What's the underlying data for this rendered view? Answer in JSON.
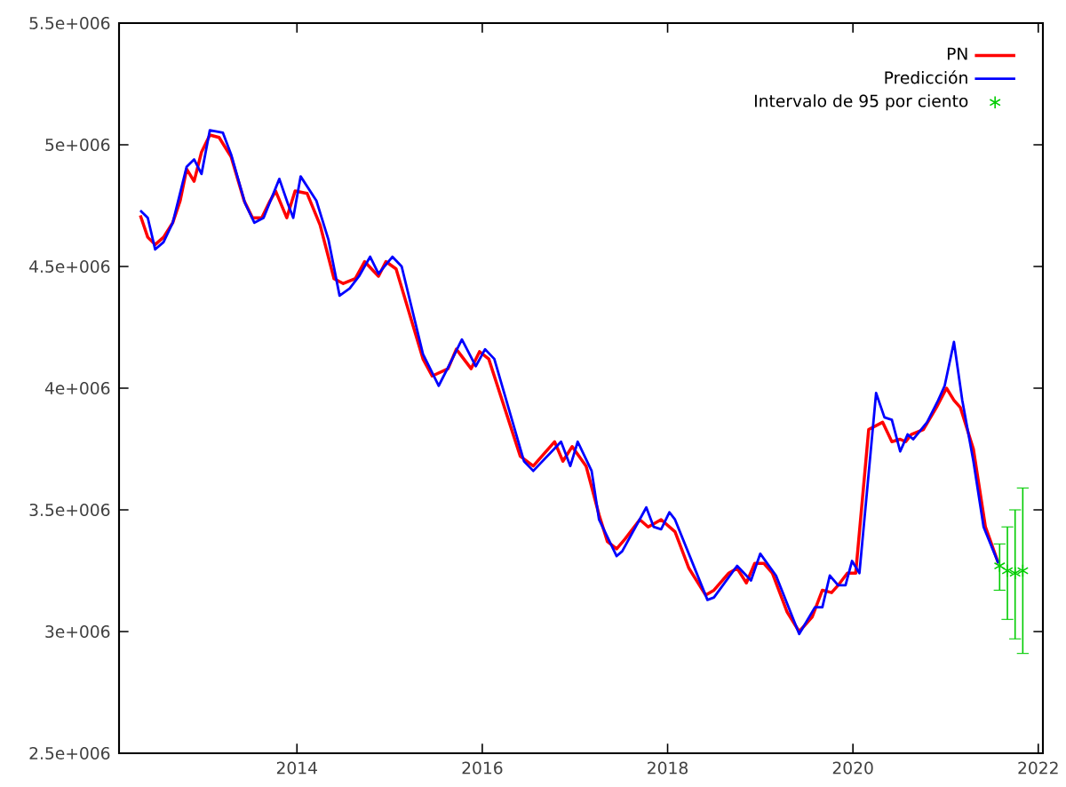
{
  "chart_data": {
    "type": "line",
    "xlim": [
      2012.08,
      2022.05
    ],
    "ylim": [
      2500000,
      5500000
    ],
    "xticks": [
      2014,
      2016,
      2018,
      2020,
      2022
    ],
    "yticks": [
      {
        "value": 2500000,
        "label": "2.5e+006"
      },
      {
        "value": 3000000,
        "label": "3e+006"
      },
      {
        "value": 3500000,
        "label": "3.5e+006"
      },
      {
        "value": 4000000,
        "label": "4e+006"
      },
      {
        "value": 4500000,
        "label": "4.5e+006"
      },
      {
        "value": 5000000,
        "label": "5e+006"
      },
      {
        "value": 5500000,
        "label": "5.5e+006"
      }
    ],
    "grid": false,
    "legend": "top right",
    "series": [
      {
        "name": "PN",
        "color": "#ff0000",
        "line_style": "solid",
        "x": [
          2012.31,
          2012.39,
          2012.47,
          2012.56,
          2012.66,
          2012.74,
          2012.81,
          2012.89,
          2012.97,
          2013.06,
          2013.16,
          2013.29,
          2013.43,
          2013.52,
          2013.62,
          2013.71,
          2013.77,
          2013.89,
          2013.98,
          2014.11,
          2014.25,
          2014.4,
          2014.5,
          2014.63,
          2014.73,
          2014.88,
          2014.96,
          2015.07,
          2015.36,
          2015.46,
          2015.63,
          2015.72,
          2015.88,
          2015.97,
          2016.07,
          2016.41,
          2016.55,
          2016.78,
          2016.87,
          2016.97,
          2017.12,
          2017.26,
          2017.35,
          2017.45,
          2017.54,
          2017.7,
          2017.79,
          2017.93,
          2018.08,
          2018.23,
          2018.41,
          2018.5,
          2018.66,
          2018.75,
          2018.85,
          2018.94,
          2019.04,
          2019.13,
          2019.29,
          2019.42,
          2019.56,
          2019.67,
          2019.77,
          2019.84,
          2019.94,
          2020.03,
          2020.17,
          2020.32,
          2020.42,
          2020.51,
          2020.57,
          2020.63,
          2020.76,
          2020.9,
          2021.01,
          2021.09,
          2021.16,
          2021.3,
          2021.43,
          2021.57
        ],
        "values": [
          4710000,
          4620000,
          4590000,
          4620000,
          4680000,
          4770000,
          4900000,
          4850000,
          4970000,
          5040000,
          5030000,
          4950000,
          4770000,
          4700000,
          4700000,
          4770000,
          4810000,
          4700000,
          4810000,
          4800000,
          4670000,
          4450000,
          4430000,
          4450000,
          4520000,
          4460000,
          4520000,
          4490000,
          4120000,
          4050000,
          4080000,
          4160000,
          4080000,
          4150000,
          4120000,
          3720000,
          3680000,
          3780000,
          3700000,
          3760000,
          3680000,
          3480000,
          3370000,
          3340000,
          3380000,
          3460000,
          3430000,
          3460000,
          3410000,
          3260000,
          3150000,
          3170000,
          3240000,
          3260000,
          3200000,
          3280000,
          3280000,
          3240000,
          3080000,
          3000000,
          3060000,
          3170000,
          3160000,
          3190000,
          3240000,
          3240000,
          3830000,
          3860000,
          3780000,
          3790000,
          3780000,
          3810000,
          3830000,
          3920000,
          4000000,
          3950000,
          3920000,
          3750000,
          3430000,
          3280000
        ]
      },
      {
        "name": "Predicción",
        "color": "#0000ff",
        "line_style": "solid",
        "x": [
          2012.31,
          2012.39,
          2012.47,
          2012.56,
          2012.66,
          2012.81,
          2012.89,
          2012.97,
          2013.06,
          2013.2,
          2013.29,
          2013.44,
          2013.54,
          2013.64,
          2013.81,
          2013.9,
          2013.96,
          2014.04,
          2014.21,
          2014.34,
          2014.46,
          2014.57,
          2014.67,
          2014.79,
          2014.88,
          2015.03,
          2015.13,
          2015.36,
          2015.53,
          2015.65,
          2015.78,
          2015.93,
          2016.03,
          2016.13,
          2016.45,
          2016.55,
          2016.85,
          2016.95,
          2017.03,
          2017.18,
          2017.26,
          2017.45,
          2017.51,
          2017.77,
          2017.85,
          2017.93,
          2018.02,
          2018.08,
          2018.43,
          2018.5,
          2018.75,
          2018.9,
          2019.0,
          2019.17,
          2019.42,
          2019.59,
          2019.67,
          2019.75,
          2019.84,
          2019.92,
          2019.99,
          2020.07,
          2020.25,
          2020.34,
          2020.42,
          2020.51,
          2020.59,
          2020.65,
          2020.8,
          2020.92,
          2020.99,
          2021.09,
          2021.18,
          2021.3,
          2021.41,
          2021.57
        ],
        "values": [
          4730000,
          4700000,
          4570000,
          4600000,
          4680000,
          4910000,
          4940000,
          4880000,
          5060000,
          5050000,
          4960000,
          4760000,
          4680000,
          4700000,
          4860000,
          4760000,
          4700000,
          4870000,
          4770000,
          4610000,
          4380000,
          4410000,
          4460000,
          4540000,
          4470000,
          4540000,
          4500000,
          4140000,
          4010000,
          4100000,
          4200000,
          4090000,
          4160000,
          4120000,
          3700000,
          3660000,
          3780000,
          3680000,
          3780000,
          3660000,
          3460000,
          3310000,
          3330000,
          3510000,
          3430000,
          3420000,
          3490000,
          3460000,
          3130000,
          3140000,
          3270000,
          3210000,
          3320000,
          3230000,
          2990000,
          3100000,
          3100000,
          3230000,
          3190000,
          3190000,
          3290000,
          3240000,
          3980000,
          3880000,
          3870000,
          3740000,
          3810000,
          3790000,
          3860000,
          3950000,
          4010000,
          4190000,
          3950000,
          3700000,
          3430000,
          3280000
        ]
      },
      {
        "name": "Intervalo de 95 por ciento",
        "color": "#00cc00",
        "type": "scatter",
        "marker": "cross",
        "x": [
          2021.583,
          2021.667,
          2021.75,
          2021.833
        ],
        "values": [
          3270000,
          3250000,
          3240000,
          3250000
        ],
        "errors": [
          [
            3170000,
            3360000
          ],
          [
            3050000,
            3430000
          ],
          [
            2970000,
            3500000
          ],
          [
            2910000,
            3590000
          ]
        ]
      }
    ]
  }
}
